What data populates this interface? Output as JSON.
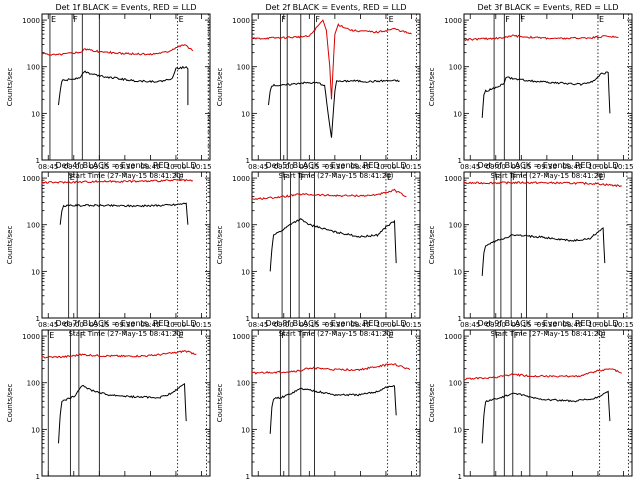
{
  "figure": {
    "start_time_label": "Start Time (27-May-15 08:41:20)",
    "ylabel": "Counts/sec",
    "legend_text": "BLACK = Events, RED = LLD",
    "colors": {
      "events": "#000000",
      "lld": "#d40000",
      "axes": "#000000"
    }
  },
  "chart_data": [
    {
      "type": "line",
      "title": "Det 1f BLACK = Events, RED = LLD",
      "xlabel": "Start Time (27-May-15 08:41:20)",
      "ylabel": "Counts/sec",
      "yscale": "log",
      "ylim": [
        1,
        1000
      ],
      "x_ticks": [
        "08:45",
        "09:00",
        "09:15",
        "09:30",
        "09:45",
        "10:00",
        "10:15"
      ],
      "y_ticks": [
        "1",
        "10",
        "100",
        "1000"
      ],
      "markers": [
        {
          "time": "08:46",
          "label": "E"
        },
        {
          "time": "08:59",
          "label": "F"
        },
        {
          "time": "09:05",
          "label": ""
        },
        {
          "time": "09:15",
          "label": ""
        },
        {
          "time": "10:01",
          "label": "E"
        },
        {
          "time": "10:19",
          "label": ""
        }
      ],
      "series": [
        {
          "name": "Events",
          "color": "#000000",
          "x": [
            "08:51",
            "08:52",
            "08:53",
            "09:00",
            "09:04",
            "09:06",
            "09:10",
            "09:20",
            "09:35",
            "09:50",
            "09:55",
            "09:58",
            "10:00",
            "10:06",
            "10:07",
            "10:07"
          ],
          "y": [
            15,
            30,
            50,
            55,
            60,
            80,
            70,
            60,
            50,
            48,
            52,
            58,
            90,
            100,
            90,
            15
          ]
        },
        {
          "name": "LLD",
          "color": "#d40000",
          "x": [
            "08:41",
            "08:50",
            "09:00",
            "09:05",
            "09:06",
            "09:15",
            "09:30",
            "09:45",
            "09:55",
            "10:00",
            "10:05",
            "10:10"
          ],
          "y": [
            190,
            180,
            200,
            210,
            240,
            210,
            190,
            185,
            210,
            260,
            300,
            220
          ]
        }
      ]
    },
    {
      "type": "line",
      "title": "Det 2f BLACK = Events, RED = LLD",
      "xlabel": "Start Time (27-May-15 08:41:20)",
      "ylabel": "Counts/sec",
      "yscale": "log",
      "ylim": [
        1,
        1000
      ],
      "x_ticks": [
        "08:45",
        "09:00",
        "09:15",
        "09:30",
        "09:45",
        "10:00",
        "10:15"
      ],
      "y_ticks": [
        "1",
        "10",
        "100",
        "1000"
      ],
      "markers": [
        {
          "time": "08:58",
          "label": "F"
        },
        {
          "time": "09:02",
          "label": ""
        },
        {
          "time": "09:10",
          "label": ""
        },
        {
          "time": "09:18",
          "label": "F"
        },
        {
          "time": "10:01",
          "label": "E"
        },
        {
          "time": "10:18",
          "label": ""
        }
      ],
      "series": [
        {
          "name": "Events",
          "color": "#000000",
          "x": [
            "08:51",
            "08:52",
            "08:53",
            "09:00",
            "09:10",
            "09:20",
            "09:24",
            "09:26",
            "09:28",
            "09:30",
            "09:31",
            "09:33",
            "09:40",
            "09:50",
            "10:00",
            "10:08"
          ],
          "y": [
            15,
            30,
            40,
            40,
            45,
            45,
            40,
            10,
            3,
            30,
            50,
            48,
            50,
            48,
            50,
            50
          ]
        },
        {
          "name": "LLD",
          "color": "#d40000",
          "x": [
            "08:41",
            "09:00",
            "09:15",
            "09:23",
            "09:25",
            "09:27",
            "09:28",
            "09:30",
            "09:32",
            "09:40",
            "09:55",
            "10:05",
            "10:15"
          ],
          "y": [
            400,
            420,
            450,
            1000,
            600,
            100,
            20,
            500,
            800,
            600,
            550,
            650,
            500
          ]
        }
      ]
    },
    {
      "type": "line",
      "title": "Det 3f BLACK = Events, RED = LLD",
      "xlabel": "Start Time (27-May-15 08:41:20)",
      "ylabel": "Counts/sec",
      "yscale": "log",
      "ylim": [
        1,
        1000
      ],
      "x_ticks": [
        "08:45",
        "09:00",
        "09:15",
        "09:30",
        "09:45",
        "10:00",
        "10:15"
      ],
      "y_ticks": [
        "1",
        "10",
        "100",
        "1000"
      ],
      "markers": [
        {
          "time": "08:59",
          "label": ""
        },
        {
          "time": "09:05",
          "label": "F"
        },
        {
          "time": "09:14",
          "label": "F"
        },
        {
          "time": "10:00",
          "label": "E"
        },
        {
          "time": "10:18",
          "label": ""
        }
      ],
      "series": [
        {
          "name": "Events",
          "color": "#000000",
          "x": [
            "08:52",
            "08:53",
            "08:54",
            "09:00",
            "09:05",
            "09:06",
            "09:10",
            "09:20",
            "09:35",
            "09:50",
            "09:58",
            "10:02",
            "10:06",
            "10:07"
          ],
          "y": [
            8,
            25,
            30,
            35,
            45,
            60,
            55,
            50,
            45,
            42,
            50,
            70,
            75,
            10
          ]
        },
        {
          "name": "LLD",
          "color": "#d40000",
          "x": [
            "08:41",
            "08:55",
            "09:05",
            "09:10",
            "09:20",
            "09:35",
            "09:50",
            "10:00",
            "10:05",
            "10:12"
          ],
          "y": [
            380,
            400,
            420,
            460,
            430,
            400,
            410,
            430,
            460,
            420
          ]
        }
      ]
    },
    {
      "type": "line",
      "title": "Det 4f BLACK = Events, RED = LLD",
      "xlabel": "Start Time (27-May-15 08:41:20)",
      "ylabel": "Counts/sec",
      "yscale": "log",
      "ylim": [
        1,
        1000
      ],
      "x_ticks": [
        "08:45",
        "09:00",
        "09:15",
        "09:30",
        "09:45",
        "10:00",
        "10:15"
      ],
      "y_ticks": [
        "1",
        "10",
        "100",
        "1000"
      ],
      "markers": [
        {
          "time": "08:57",
          "label": "E"
        },
        {
          "time": "09:02",
          "label": ""
        },
        {
          "time": "09:15",
          "label": ""
        },
        {
          "time": "10:01",
          "label": "E"
        },
        {
          "time": "10:18",
          "label": ""
        }
      ],
      "series": [
        {
          "name": "Events",
          "color": "#000000",
          "x": [
            "08:52",
            "08:53",
            "08:54",
            "09:00",
            "09:15",
            "09:30",
            "09:45",
            "10:00",
            "10:06",
            "10:07"
          ],
          "y": [
            100,
            200,
            250,
            260,
            260,
            255,
            255,
            270,
            290,
            100
          ]
        },
        {
          "name": "LLD",
          "color": "#d40000",
          "x": [
            "08:41",
            "09:00",
            "09:15",
            "09:30",
            "09:45",
            "10:00",
            "10:10"
          ],
          "y": [
            800,
            820,
            850,
            850,
            860,
            900,
            880
          ]
        }
      ]
    },
    {
      "type": "line",
      "title": "Det 5f BLACK = Events, RED = LLD",
      "xlabel": "Start Time (27-May-15 08:41:20)",
      "ylabel": "Counts/sec",
      "yscale": "log",
      "ylim": [
        1,
        1000
      ],
      "x_ticks": [
        "08:45",
        "09:00",
        "09:15",
        "09:30",
        "09:45",
        "10:00",
        "10:15"
      ],
      "y_ticks": [
        "1",
        "10",
        "100",
        "1000"
      ],
      "markers": [
        {
          "time": "08:59",
          "label": "F"
        },
        {
          "time": "09:04",
          "label": ""
        },
        {
          "time": "09:09",
          "label": "F"
        },
        {
          "time": "09:18",
          "label": ""
        },
        {
          "time": "10:00",
          "label": "E"
        },
        {
          "time": "10:17",
          "label": ""
        }
      ],
      "series": [
        {
          "name": "Events",
          "color": "#000000",
          "x": [
            "08:52",
            "08:53",
            "08:54",
            "09:00",
            "09:05",
            "09:10",
            "09:15",
            "09:30",
            "09:45",
            "09:55",
            "10:00",
            "10:05",
            "10:06"
          ],
          "y": [
            10,
            30,
            60,
            80,
            110,
            130,
            100,
            70,
            55,
            60,
            90,
            120,
            15
          ]
        },
        {
          "name": "LLD",
          "color": "#d40000",
          "x": [
            "08:41",
            "09:00",
            "09:10",
            "09:30",
            "09:50",
            "10:00",
            "10:05",
            "10:12"
          ],
          "y": [
            350,
            400,
            450,
            420,
            420,
            480,
            550,
            400
          ]
        }
      ]
    },
    {
      "type": "line",
      "title": "Det 6f BLACK = Events, RED = LLD",
      "xlabel": "Start Time (27-May-15 08:41:20)",
      "ylabel": "Counts/sec",
      "yscale": "log",
      "ylim": [
        1,
        1000
      ],
      "x_ticks": [
        "08:45",
        "09:00",
        "09:15",
        "09:30",
        "09:45",
        "10:00",
        "10:15"
      ],
      "y_ticks": [
        "1",
        "10",
        "100",
        "1000"
      ],
      "markers": [
        {
          "time": "08:59",
          "label": "F"
        },
        {
          "time": "09:03",
          "label": ""
        },
        {
          "time": "09:09",
          "label": "F"
        },
        {
          "time": "09:18",
          "label": ""
        },
        {
          "time": "10:00",
          "label": "E"
        },
        {
          "time": "10:17",
          "label": ""
        }
      ],
      "series": [
        {
          "name": "Events",
          "color": "#000000",
          "x": [
            "08:52",
            "08:53",
            "08:54",
            "09:00",
            "09:10",
            "09:25",
            "09:45",
            "09:55",
            "10:00",
            "10:03",
            "10:04"
          ],
          "y": [
            8,
            25,
            35,
            45,
            60,
            55,
            45,
            50,
            70,
            85,
            15
          ]
        },
        {
          "name": "LLD",
          "color": "#d40000",
          "x": [
            "08:41",
            "09:00",
            "09:15",
            "09:30",
            "09:45",
            "10:00",
            "10:05",
            "10:14"
          ],
          "y": [
            780,
            790,
            800,
            790,
            780,
            760,
            720,
            680
          ]
        }
      ]
    },
    {
      "type": "line",
      "title": "Det 7f BLACK = Events, RED = LLD",
      "xlabel": "Start Time (27-May-15 08:41:20)",
      "ylabel": "Counts/sec",
      "yscale": "log",
      "ylim": [
        1,
        1000
      ],
      "x_ticks": [
        "08:45",
        "09:00",
        "09:15",
        "09:30",
        "09:45",
        "10:00",
        "10:15"
      ],
      "y_ticks": [
        "1",
        "10",
        "100",
        "1000"
      ],
      "markers": [
        {
          "time": "08:45",
          "label": "E"
        },
        {
          "time": "08:58",
          "label": ""
        },
        {
          "time": "09:03",
          "label": "F"
        },
        {
          "time": "09:15",
          "label": ""
        },
        {
          "time": "10:01",
          "label": "E"
        },
        {
          "time": "10:18",
          "label": ""
        }
      ],
      "series": [
        {
          "name": "Events",
          "color": "#000000",
          "x": [
            "08:51",
            "08:52",
            "08:53",
            "09:00",
            "09:03",
            "09:05",
            "09:10",
            "09:20",
            "09:35",
            "09:50",
            "09:58",
            "10:03",
            "10:05",
            "10:06"
          ],
          "y": [
            5,
            20,
            40,
            50,
            70,
            90,
            70,
            55,
            50,
            48,
            60,
            85,
            95,
            15
          ]
        },
        {
          "name": "LLD",
          "color": "#d40000",
          "x": [
            "08:41",
            "08:55",
            "09:05",
            "09:15",
            "09:30",
            "09:45",
            "10:00",
            "10:05",
            "10:12"
          ],
          "y": [
            350,
            360,
            400,
            380,
            370,
            380,
            440,
            480,
            410
          ]
        }
      ]
    },
    {
      "type": "line",
      "title": "Det 8f BLACK = Events, RED = LLD",
      "xlabel": "Start Time (27-May-15 08:41:20)",
      "ylabel": "Counts/sec",
      "yscale": "log",
      "ylim": [
        1,
        1000
      ],
      "x_ticks": [
        "08:45",
        "09:00",
        "09:15",
        "09:30",
        "09:45",
        "10:00",
        "10:15"
      ],
      "y_ticks": [
        "1",
        "10",
        "100",
        "1000"
      ],
      "markers": [
        {
          "time": "08:58",
          "label": "F"
        },
        {
          "time": "09:03",
          "label": ""
        },
        {
          "time": "09:10",
          "label": "F"
        },
        {
          "time": "09:18",
          "label": ""
        },
        {
          "time": "10:01",
          "label": "E"
        },
        {
          "time": "10:18",
          "label": ""
        }
      ],
      "series": [
        {
          "name": "Events",
          "color": "#000000",
          "x": [
            "08:52",
            "08:53",
            "08:54",
            "09:00",
            "09:10",
            "09:15",
            "09:30",
            "09:45",
            "09:55",
            "10:00",
            "10:05",
            "10:06"
          ],
          "y": [
            8,
            30,
            45,
            50,
            75,
            70,
            55,
            55,
            65,
            80,
            85,
            20
          ]
        },
        {
          "name": "LLD",
          "color": "#d40000",
          "x": [
            "08:41",
            "09:00",
            "09:10",
            "09:15",
            "09:30",
            "09:45",
            "10:00",
            "10:05",
            "10:14"
          ],
          "y": [
            160,
            170,
            180,
            210,
            190,
            190,
            240,
            250,
            190
          ]
        }
      ]
    },
    {
      "type": "line",
      "title": "Det 9f BLACK = Events, RED = LLD",
      "xlabel": "Start Time (27-May-15 08:41:20)",
      "ylabel": "Counts/sec",
      "yscale": "log",
      "ylim": [
        1,
        1000
      ],
      "x_ticks": [
        "08:45",
        "09:00",
        "09:15",
        "09:30",
        "09:45",
        "10:00",
        "10:15"
      ],
      "y_ticks": [
        "1",
        "10",
        "100",
        "1000"
      ],
      "markers": [
        {
          "time": "08:59",
          "label": "F"
        },
        {
          "time": "09:05",
          "label": ""
        },
        {
          "time": "09:10",
          "label": "F"
        },
        {
          "time": "09:20",
          "label": ""
        },
        {
          "time": "10:01",
          "label": "E"
        },
        {
          "time": "10:18",
          "label": ""
        }
      ],
      "series": [
        {
          "name": "Events",
          "color": "#000000",
          "x": [
            "08:52",
            "08:53",
            "08:54",
            "09:00",
            "09:08",
            "09:10",
            "09:25",
            "09:45",
            "09:58",
            "10:04",
            "10:06",
            "10:07"
          ],
          "y": [
            5,
            20,
            40,
            45,
            55,
            60,
            45,
            40,
            45,
            60,
            65,
            15
          ]
        },
        {
          "name": "LLD",
          "color": "#d40000",
          "x": [
            "08:41",
            "09:00",
            "09:10",
            "09:20",
            "09:35",
            "09:50",
            "10:00",
            "10:08",
            "10:14"
          ],
          "y": [
            120,
            130,
            150,
            140,
            135,
            140,
            180,
            200,
            160
          ]
        }
      ]
    }
  ]
}
